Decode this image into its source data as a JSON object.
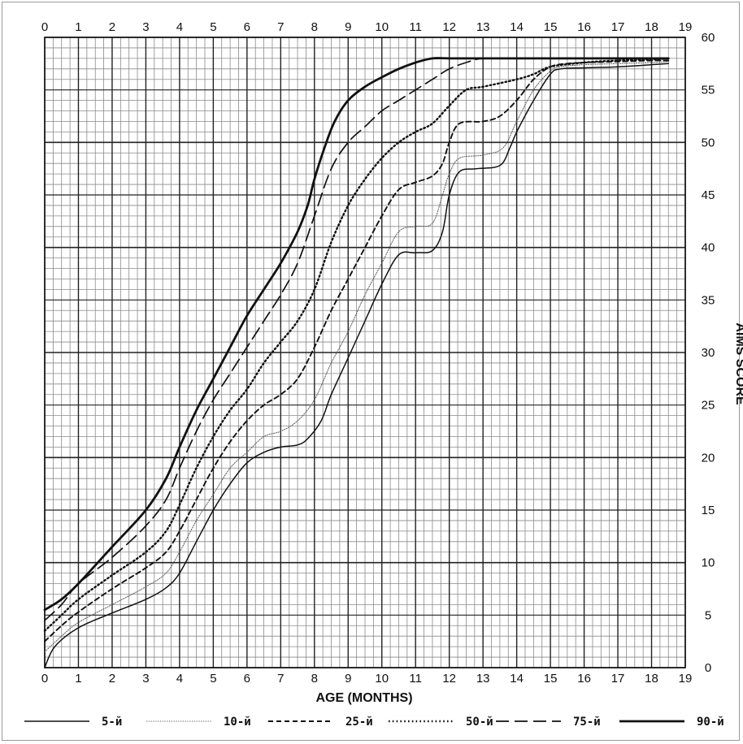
{
  "chart_data": {
    "type": "line",
    "title": "",
    "xlabel": "AGE (MONTHS)",
    "ylabel": "AIMS SCORE",
    "xlim": [
      0,
      19
    ],
    "ylim": [
      0,
      60
    ],
    "x_ticks": [
      0,
      1,
      2,
      3,
      4,
      5,
      6,
      7,
      8,
      9,
      10,
      11,
      12,
      13,
      14,
      15,
      16,
      17,
      18,
      19
    ],
    "y_ticks": [
      0,
      5,
      10,
      15,
      20,
      25,
      30,
      35,
      40,
      45,
      50,
      55,
      60
    ],
    "grid": true,
    "grid_minor": true,
    "legend_position": "bottom",
    "series": [
      {
        "name": "5-й",
        "style": "solid-thin",
        "color": "#111111",
        "points": [
          [
            0,
            0
          ],
          [
            0.3,
            2
          ],
          [
            1,
            3.8
          ],
          [
            2,
            5.2
          ],
          [
            3,
            6.5
          ],
          [
            3.6,
            7.6
          ],
          [
            4,
            9
          ],
          [
            4.5,
            12
          ],
          [
            5,
            15
          ],
          [
            5.5,
            17.5
          ],
          [
            6,
            19.5
          ],
          [
            6.5,
            20.5
          ],
          [
            7,
            21
          ],
          [
            7.5,
            21.2
          ],
          [
            7.8,
            21.8
          ],
          [
            8.2,
            23.5
          ],
          [
            8.5,
            26
          ],
          [
            9,
            29.5
          ],
          [
            9.5,
            33
          ],
          [
            10,
            36.5
          ],
          [
            10.5,
            39.3
          ],
          [
            11,
            39.5
          ],
          [
            11.5,
            39.7
          ],
          [
            11.8,
            41.5
          ],
          [
            12,
            45
          ],
          [
            12.3,
            47.2
          ],
          [
            12.8,
            47.5
          ],
          [
            13.5,
            47.8
          ],
          [
            13.8,
            49.5
          ],
          [
            14,
            51
          ],
          [
            14.5,
            54
          ],
          [
            15,
            56.5
          ],
          [
            15.3,
            57
          ],
          [
            16,
            57.1
          ],
          [
            17,
            57.2
          ],
          [
            18,
            57.4
          ],
          [
            18.5,
            57.5
          ]
        ]
      },
      {
        "name": "10-й",
        "style": "dotted-fine",
        "color": "#555555",
        "points": [
          [
            0,
            1.5
          ],
          [
            0.5,
            3
          ],
          [
            1,
            4.3
          ],
          [
            2,
            6
          ],
          [
            3,
            7.7
          ],
          [
            3.6,
            9
          ],
          [
            4,
            11
          ],
          [
            4.5,
            14
          ],
          [
            5,
            16.5
          ],
          [
            5.5,
            19
          ],
          [
            6,
            20.5
          ],
          [
            6.5,
            22
          ],
          [
            7,
            22.5
          ],
          [
            7.5,
            23.5
          ],
          [
            8,
            25.5
          ],
          [
            8.5,
            29
          ],
          [
            9,
            32
          ],
          [
            9.5,
            35.5
          ],
          [
            10,
            38.5
          ],
          [
            10.5,
            41.5
          ],
          [
            11,
            42
          ],
          [
            11.5,
            42.3
          ],
          [
            11.8,
            45
          ],
          [
            12,
            47
          ],
          [
            12.3,
            48.5
          ],
          [
            13,
            48.8
          ],
          [
            13.6,
            49.5
          ],
          [
            14,
            52
          ],
          [
            14.5,
            55
          ],
          [
            15,
            56.8
          ],
          [
            15.3,
            57.2
          ],
          [
            16,
            57.4
          ],
          [
            17,
            57.5
          ],
          [
            18,
            57.6
          ],
          [
            18.5,
            57.7
          ]
        ]
      },
      {
        "name": "25-й",
        "style": "dashed-short",
        "color": "#111111",
        "points": [
          [
            0,
            2.5
          ],
          [
            0.5,
            4
          ],
          [
            1,
            5.3
          ],
          [
            2,
            7.5
          ],
          [
            3,
            9.5
          ],
          [
            3.6,
            11
          ],
          [
            4,
            13
          ],
          [
            4.5,
            16
          ],
          [
            5,
            19
          ],
          [
            5.5,
            21.5
          ],
          [
            6,
            23.5
          ],
          [
            6.5,
            25
          ],
          [
            7,
            26
          ],
          [
            7.5,
            27.5
          ],
          [
            8,
            30.5
          ],
          [
            8.5,
            34
          ],
          [
            9,
            37
          ],
          [
            9.5,
            40
          ],
          [
            10,
            43
          ],
          [
            10.5,
            45.5
          ],
          [
            11,
            46.2
          ],
          [
            11.5,
            46.8
          ],
          [
            11.8,
            48
          ],
          [
            12,
            50
          ],
          [
            12.3,
            51.8
          ],
          [
            13,
            52
          ],
          [
            13.5,
            52.5
          ],
          [
            14,
            54
          ],
          [
            14.5,
            56
          ],
          [
            15,
            57.2
          ],
          [
            15.5,
            57.5
          ],
          [
            16,
            57.6
          ],
          [
            17,
            57.7
          ],
          [
            18,
            57.8
          ],
          [
            18.5,
            57.8
          ]
        ]
      },
      {
        "name": "50-й",
        "style": "dotted",
        "color": "#111111",
        "points": [
          [
            0,
            3.5
          ],
          [
            0.5,
            5
          ],
          [
            1,
            6.5
          ],
          [
            2,
            8.8
          ],
          [
            3,
            11
          ],
          [
            3.6,
            13
          ],
          [
            4,
            15.5
          ],
          [
            4.5,
            19
          ],
          [
            5,
            22
          ],
          [
            5.5,
            24.5
          ],
          [
            6,
            26.5
          ],
          [
            6.5,
            29
          ],
          [
            7,
            31
          ],
          [
            7.5,
            33
          ],
          [
            8,
            36
          ],
          [
            8.5,
            40.5
          ],
          [
            9,
            44
          ],
          [
            9.5,
            46.5
          ],
          [
            10,
            48.5
          ],
          [
            10.5,
            50
          ],
          [
            11,
            51
          ],
          [
            11.5,
            51.8
          ],
          [
            12,
            53.5
          ],
          [
            12.5,
            55
          ],
          [
            13,
            55.3
          ],
          [
            14,
            56
          ],
          [
            14.5,
            56.5
          ],
          [
            15,
            57.2
          ],
          [
            16,
            57.6
          ],
          [
            17,
            57.8
          ],
          [
            18,
            57.9
          ],
          [
            18.5,
            58
          ]
        ]
      },
      {
        "name": "75-й",
        "style": "dashed-long",
        "color": "#111111",
        "points": [
          [
            0,
            4.5
          ],
          [
            0.5,
            6
          ],
          [
            1,
            8
          ],
          [
            2,
            10.5
          ],
          [
            3,
            13.5
          ],
          [
            3.6,
            16
          ],
          [
            4,
            19
          ],
          [
            4.5,
            22.5
          ],
          [
            5,
            25.5
          ],
          [
            5.5,
            28
          ],
          [
            6,
            30.5
          ],
          [
            6.5,
            33
          ],
          [
            7,
            35.5
          ],
          [
            7.5,
            38.5
          ],
          [
            8,
            43
          ],
          [
            8.5,
            47.5
          ],
          [
            9,
            50
          ],
          [
            9.5,
            51.5
          ],
          [
            10,
            53
          ],
          [
            10.5,
            54
          ],
          [
            11,
            55
          ],
          [
            11.5,
            56
          ],
          [
            12,
            57
          ],
          [
            12.5,
            57.6
          ],
          [
            13,
            58
          ],
          [
            14,
            58
          ],
          [
            15,
            58
          ],
          [
            16,
            58
          ],
          [
            17,
            58
          ],
          [
            18,
            58
          ],
          [
            18.5,
            58
          ]
        ]
      },
      {
        "name": "90-й",
        "style": "solid-thick",
        "color": "#111111",
        "points": [
          [
            0,
            5.5
          ],
          [
            0.5,
            6.5
          ],
          [
            1,
            8
          ],
          [
            2,
            11.5
          ],
          [
            3,
            15
          ],
          [
            3.6,
            18
          ],
          [
            4,
            21
          ],
          [
            4.5,
            24.5
          ],
          [
            5,
            27.5
          ],
          [
            5.5,
            30.5
          ],
          [
            6,
            33.5
          ],
          [
            6.5,
            36
          ],
          [
            7,
            38.5
          ],
          [
            7.5,
            41.5
          ],
          [
            7.8,
            44
          ],
          [
            8,
            46.5
          ],
          [
            8.3,
            49.5
          ],
          [
            8.6,
            52
          ],
          [
            9,
            54
          ],
          [
            9.5,
            55.3
          ],
          [
            10,
            56.2
          ],
          [
            10.5,
            57
          ],
          [
            11,
            57.6
          ],
          [
            11.5,
            58
          ],
          [
            12,
            58
          ],
          [
            13,
            58
          ],
          [
            14,
            58
          ],
          [
            15,
            58
          ],
          [
            16,
            58
          ],
          [
            17,
            58
          ],
          [
            18,
            58
          ],
          [
            18.5,
            58
          ]
        ]
      }
    ]
  }
}
